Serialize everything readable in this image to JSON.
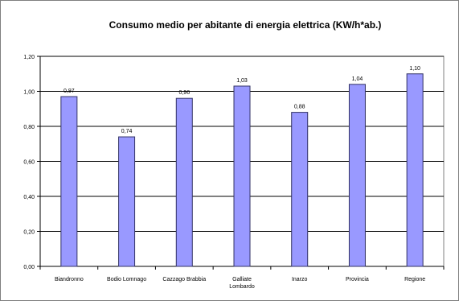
{
  "chart_data": {
    "type": "bar",
    "title": "Consumo medio per abitante di energia elettrica (KW/h*ab.)",
    "xlabel": "",
    "ylabel": "",
    "ylim": [
      0,
      1.2
    ],
    "yticks": [
      "0,00",
      "0,20",
      "0,40",
      "0,60",
      "0,80",
      "1,00",
      "1,20"
    ],
    "ytick_values": [
      0,
      0.2,
      0.4,
      0.6,
      0.8,
      1.0,
      1.2
    ],
    "grid": true,
    "legend": "none",
    "categories": [
      [
        "Biandronno"
      ],
      [
        "Bodio Lomnago"
      ],
      [
        "Cazzago Brabbia"
      ],
      [
        "Galliate",
        "Lombardo"
      ],
      [
        "Inarzo"
      ],
      [
        "Provincia"
      ],
      [
        "Regione"
      ]
    ],
    "values": [
      0.97,
      0.74,
      0.96,
      1.03,
      0.88,
      1.04,
      1.1
    ],
    "value_labels": [
      "0,97",
      "0,74",
      "0,96",
      "1,03",
      "0,88",
      "1,04",
      "1,10"
    ],
    "colors": {
      "bar_fill": "#9999ff",
      "bar_stroke": "#333366",
      "grid": "#000000",
      "plot_border": "#808080",
      "text": "#000000"
    }
  }
}
